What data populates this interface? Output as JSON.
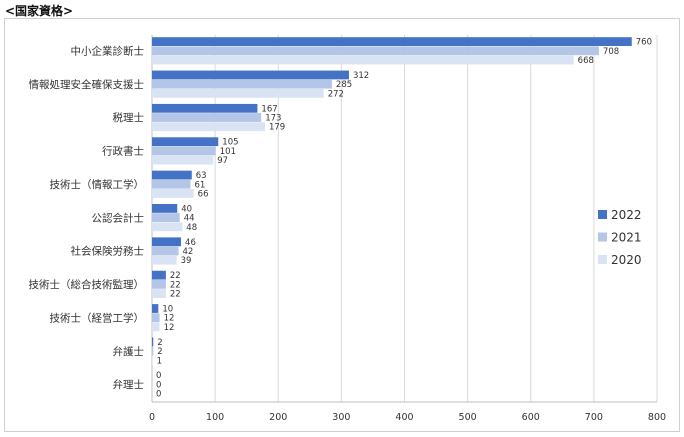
{
  "heading": "<国家資格>",
  "chart_data": {
    "type": "bar",
    "orientation": "horizontal",
    "categories": [
      "中小企業診断士",
      "情報処理安全確保支援士",
      "税理士",
      "行政書士",
      "技術士（情報工学）",
      "公認会計士",
      "社会保険労務士",
      "技術士（総合技術監理）",
      "技術士（経営工学）",
      "弁護士",
      "弁理士"
    ],
    "series": [
      {
        "name": "2022",
        "color": "#4472c4",
        "values": [
          760,
          312,
          167,
          105,
          63,
          40,
          46,
          22,
          10,
          2,
          0
        ]
      },
      {
        "name": "2021",
        "color": "#b4c6e7",
        "values": [
          708,
          285,
          173,
          101,
          61,
          44,
          42,
          22,
          12,
          2,
          0
        ]
      },
      {
        "name": "2020",
        "color": "#dae3f3",
        "values": [
          668,
          272,
          179,
          97,
          66,
          48,
          39,
          22,
          12,
          1,
          0
        ]
      }
    ],
    "xlim": [
      0,
      800
    ],
    "xticks": [
      "0",
      "100",
      "200",
      "300",
      "400",
      "500",
      "600",
      "700",
      "800"
    ],
    "grid": true,
    "legend_position": "right"
  }
}
